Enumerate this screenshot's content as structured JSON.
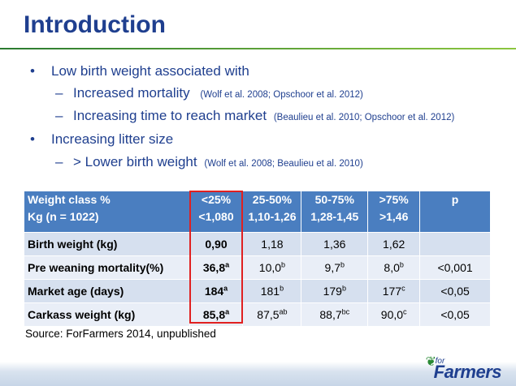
{
  "title": "Introduction",
  "bullets": {
    "b1_text": "Low birth weight associated with",
    "b1_1_text": "Increased mortality",
    "b1_1_cite": "(Wolf et al. 2008; Opschoor et al. 2012)",
    "b1_2_text": "Increasing time to reach market",
    "b1_2_cite": "(Beaulieu et al. 2010; Opschoor et al. 2012)",
    "b2_text": "Increasing litter size",
    "b2_1_text": "> Lower birth weight",
    "b2_1_cite": "(Wolf et al. 2008; Beaulieu et al. 2010)",
    "bullet_mark": "•",
    "dash_mark": "–"
  },
  "table": {
    "header": {
      "c0_l1": "Weight class %",
      "c0_l2": "Kg (n = 1022)",
      "c1_l1": "<25%",
      "c1_l2": "<1,080",
      "c2_l1": "25-50%",
      "c2_l2": "1,10-1,26",
      "c3_l1": "50-75%",
      "c3_l2": "1,28-1,45",
      "c4_l1": ">75%",
      "c4_l2": ">1,46",
      "c5_l1": "p"
    },
    "rows": [
      {
        "label": "Birth weight (kg)",
        "v1": "0,90",
        "s1": "",
        "v2": "1,18",
        "s2": "",
        "v3": "1,36",
        "s3": "",
        "v4": "1,62",
        "s4": "",
        "p": ""
      },
      {
        "label": "Pre weaning mortality(%)",
        "v1": "36,8",
        "s1": "a",
        "v2": "10,0",
        "s2": "b",
        "v3": "9,7",
        "s3": "b",
        "v4": "8,0",
        "s4": "b",
        "p": "<0,001"
      },
      {
        "label": "Market age (days)",
        "v1": "184",
        "s1": "a",
        "v2": "181",
        "s2": "b",
        "v3": "179",
        "s3": "b",
        "v4": "177",
        "s4": "c",
        "p": "<0,05"
      },
      {
        "label": "Carkass weight (kg)",
        "v1": "85,8",
        "s1": "a",
        "v2": "87,5",
        "s2": "ab",
        "v3": "88,7",
        "s3": "bc",
        "v4": "90,0",
        "s4": "c",
        "p": "<0,05"
      }
    ]
  },
  "source": "Source: ForFarmers 2014, unpublished",
  "logo": {
    "for": "for",
    "main": "Farmers"
  },
  "colors": {
    "title": "#1f3f8f",
    "header_bg": "#4a7ec0",
    "highlight": "#e02020",
    "accent_green": "#2a8a35"
  }
}
